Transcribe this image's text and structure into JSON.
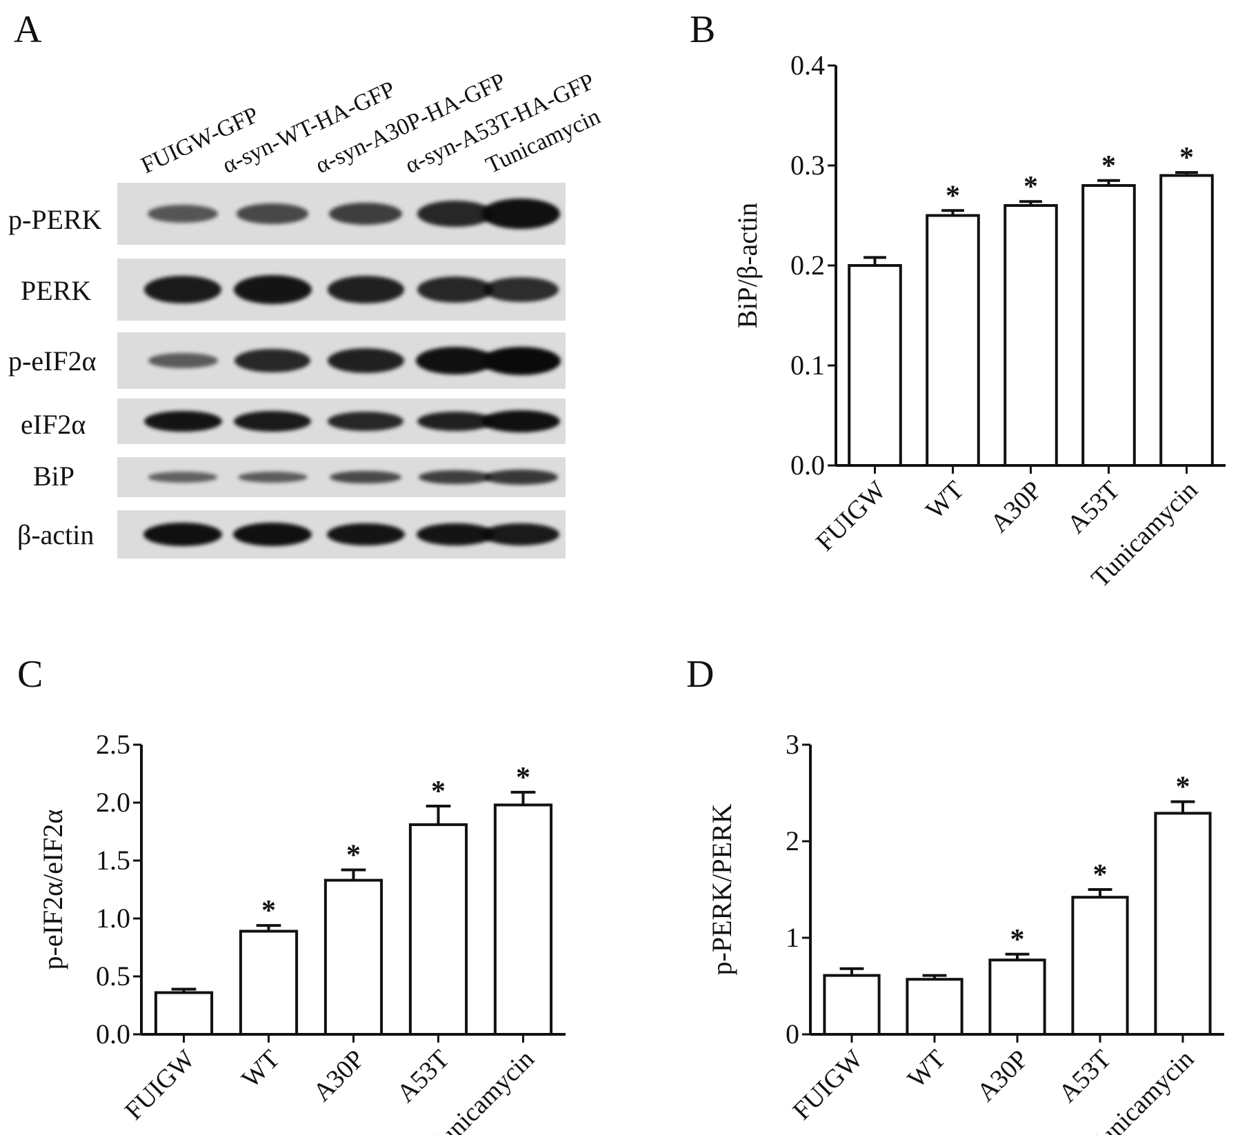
{
  "panels": {
    "a": {
      "letter": "A",
      "lanes": [
        "FUIGW-GFP",
        "α-syn-WT-HA-GFP",
        "α-syn-A30P-HA-GFP",
        "α-syn-A53T-HA-GFP",
        "Tunicamycin"
      ],
      "rows": [
        {
          "label": "p-PERK",
          "intensity": [
            0.35,
            0.45,
            0.55,
            0.75,
            0.95
          ]
        },
        {
          "label": "PERK",
          "intensity": [
            0.85,
            0.9,
            0.8,
            0.75,
            0.7
          ]
        },
        {
          "label": "p-eIF2α",
          "intensity": [
            0.3,
            0.75,
            0.8,
            0.95,
            1.0
          ]
        },
        {
          "label": "eIF2α",
          "intensity": [
            0.9,
            0.85,
            0.75,
            0.8,
            0.95
          ]
        },
        {
          "label": "BiP",
          "intensity": [
            0.25,
            0.3,
            0.45,
            0.55,
            0.6
          ]
        },
        {
          "label": "β-actin",
          "intensity": [
            0.95,
            0.95,
            0.9,
            0.9,
            0.85
          ]
        }
      ]
    },
    "b": {
      "letter": "B"
    },
    "c": {
      "letter": "C"
    },
    "d": {
      "letter": "D"
    }
  },
  "chart_data": [
    {
      "panel": "B",
      "type": "bar",
      "categories": [
        "FUIGW",
        "WT",
        "A30P",
        "A53T",
        "Tunicamycin"
      ],
      "values": [
        0.2,
        0.25,
        0.26,
        0.28,
        0.29
      ],
      "errors": [
        0.008,
        0.005,
        0.004,
        0.005,
        0.003
      ],
      "significance": [
        "",
        "*",
        "*",
        "*",
        "*"
      ],
      "ylabel": "BiP/β-actin",
      "xlabel": "",
      "ylim": [
        0,
        0.4
      ],
      "yticks": [
        "0.0",
        "0.1",
        "0.2",
        "0.3",
        "0.4"
      ],
      "ytick_values": [
        0,
        0.1,
        0.2,
        0.3,
        0.4
      ]
    },
    {
      "panel": "C",
      "type": "bar",
      "categories": [
        "FUIGW",
        "WT",
        "A30P",
        "A53T",
        "Tunicamycin"
      ],
      "values": [
        0.36,
        0.89,
        1.33,
        1.81,
        1.98
      ],
      "errors": [
        0.03,
        0.05,
        0.09,
        0.16,
        0.11
      ],
      "significance": [
        "",
        "*",
        "*",
        "*",
        "*"
      ],
      "ylabel": "p-eIF2α/eIF2α",
      "xlabel": "",
      "ylim": [
        0,
        2.5
      ],
      "yticks": [
        "0.0",
        "0.5",
        "1.0",
        "1.5",
        "2.0",
        "2.5"
      ],
      "ytick_values": [
        0,
        0.5,
        1.0,
        1.5,
        2.0,
        2.5
      ]
    },
    {
      "panel": "D",
      "type": "bar",
      "categories": [
        "FUIGW",
        "WT",
        "A30P",
        "A53T",
        "Tunicamycin"
      ],
      "values": [
        0.61,
        0.57,
        0.77,
        1.42,
        2.29
      ],
      "errors": [
        0.07,
        0.04,
        0.06,
        0.08,
        0.12
      ],
      "significance": [
        "",
        "",
        "*",
        "*",
        "*"
      ],
      "ylabel": "p-PERK/PERK",
      "xlabel": "",
      "ylim": [
        0,
        3
      ],
      "yticks": [
        "0",
        "1",
        "2",
        "3"
      ],
      "ytick_values": [
        0,
        1,
        2,
        3
      ]
    }
  ]
}
